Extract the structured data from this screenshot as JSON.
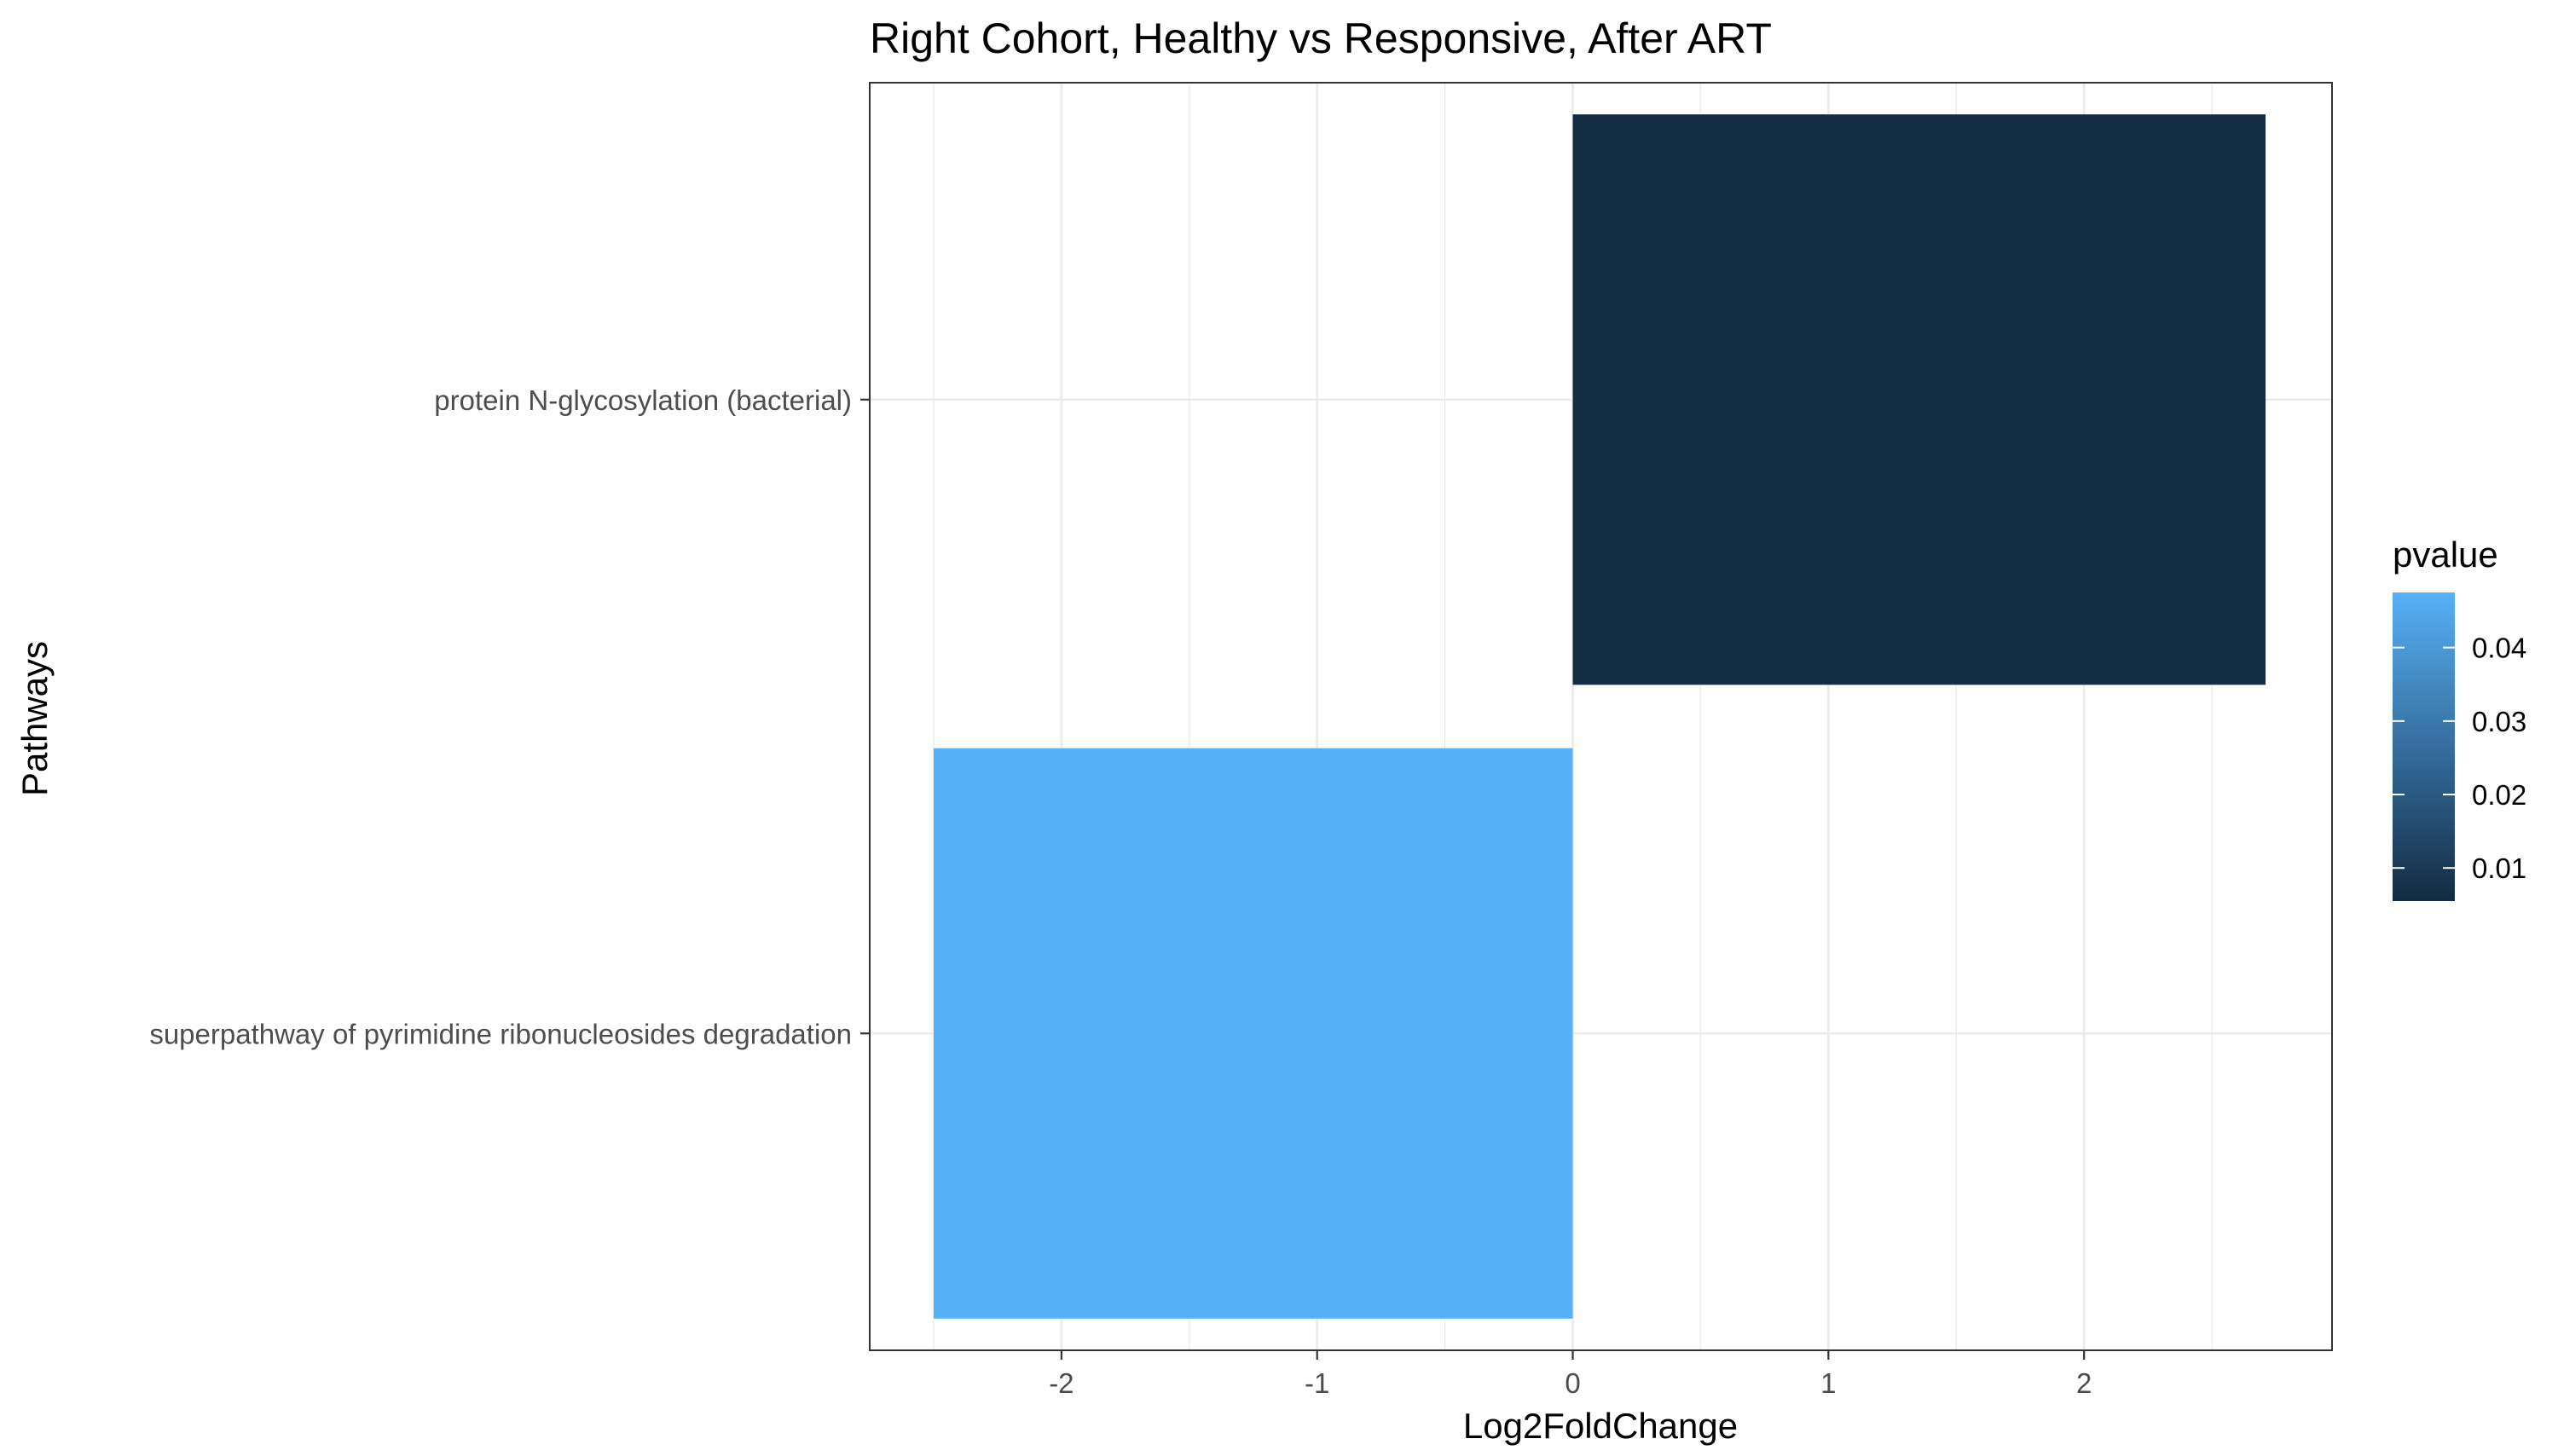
{
  "chart_data": {
    "type": "bar",
    "orientation": "horizontal",
    "title": "Right Cohort, Healthy vs Responsive, After ART",
    "xlabel": "Log2FoldChange",
    "ylabel": "Pathways",
    "xlim": [
      -2.75,
      2.97
    ],
    "xticks": [
      -2,
      -1,
      0,
      1,
      2
    ],
    "xtick_labels": [
      "-2",
      "-1",
      "0",
      "1",
      "2"
    ],
    "categories": [
      "protein N-glycosylation (bacterial)",
      "superpathway of pyrimidine ribonucleosides degradation"
    ],
    "values": [
      2.71,
      -2.5
    ],
    "pvalues": [
      0.006,
      0.048
    ],
    "grid": true,
    "legend": {
      "title": "pvalue",
      "placement": "right",
      "range": [
        0.0055,
        0.0475
      ],
      "ticks": [
        0.01,
        0.02,
        0.03,
        0.04
      ],
      "tick_labels": [
        "0.01",
        "0.02",
        "0.03",
        "0.04"
      ],
      "color_low": "#132B43",
      "color_high": "#56B1F7"
    }
  }
}
